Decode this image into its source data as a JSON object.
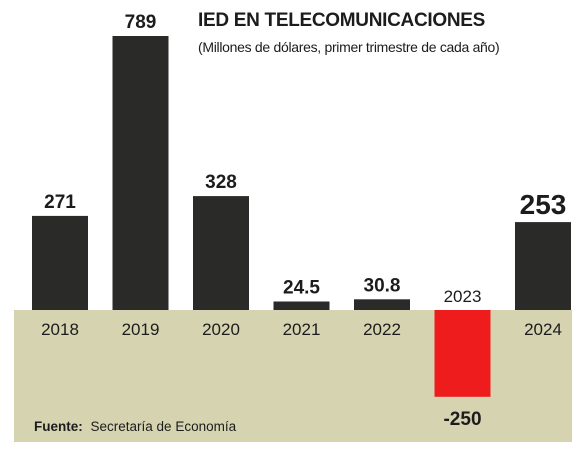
{
  "chart_data": {
    "type": "bar",
    "title": "IED EN TELECOMUNICACIONES",
    "subtitle": "(Millones de dólares, primer trimestre de cada año)",
    "categories": [
      "2018",
      "2019",
      "2020",
      "2021",
      "2022",
      "2023",
      "2024"
    ],
    "values": [
      271,
      789,
      328,
      24.5,
      30.8,
      -250,
      253
    ],
    "value_labels": [
      "271",
      "789",
      "328",
      "24.5",
      "30.8",
      "-250",
      "253"
    ],
    "ylim": [
      -250,
      789
    ],
    "grid": false,
    "colors": {
      "positive": "#2a2a28",
      "negative": "#ee1c1c",
      "baseline_band": "#d6d3b0",
      "text": "#1c1c1c"
    }
  },
  "source": {
    "label": "Fuente:",
    "text": "Secretaría de Economía"
  }
}
